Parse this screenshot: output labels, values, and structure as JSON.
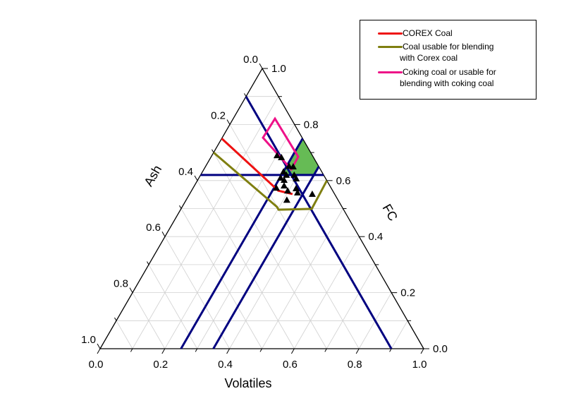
{
  "chart_data": {
    "type": "scatter",
    "subtype": "ternary",
    "axes": {
      "bottom": {
        "label": "Volatiles",
        "ticks": [
          "0.0",
          "0.2",
          "0.4",
          "0.6",
          "0.8",
          "1.0"
        ]
      },
      "left": {
        "label": "Ash",
        "ticks": [
          "0.0",
          "0.2",
          "0.4",
          "0.6",
          "0.8",
          "1.0"
        ]
      },
      "right": {
        "label": "FC",
        "ticks": [
          "0.0",
          "0.2",
          "0.4",
          "0.6",
          "0.8",
          "1.0"
        ]
      }
    },
    "range": [
      0,
      1
    ],
    "grid": true,
    "grid_step": 0.1,
    "legend_position": "top-right",
    "legend": [
      {
        "label": "COREX Coal",
        "color": "#ee1111"
      },
      {
        "label": "Coal usable for blending with Corex coal",
        "label_lines": [
          "Coal usable for blending",
          "with Corex coal"
        ],
        "color": "#7f7f10"
      },
      {
        "label": "Coking coal or usable for blending with coking coal",
        "label_lines": [
          "Coking coal or usable for",
          "blending with coking coal"
        ],
        "color": "#ee1188"
      }
    ],
    "regions": [
      {
        "name": "COREX Coal",
        "color": "#ee1111",
        "points_vol_fc": [
          [
            0.0,
            0.75
          ],
          [
            0.268,
            0.564
          ],
          [
            0.318,
            0.552
          ]
        ]
      },
      {
        "name": "Coal usable for blending with Corex coal",
        "color": "#7f7f10",
        "points_vol_fc": [
          [
            0.0,
            0.7
          ],
          [
            0.293,
            0.506
          ],
          [
            0.303,
            0.496
          ],
          [
            0.404,
            0.499
          ],
          [
            0.4,
            0.6
          ]
        ]
      },
      {
        "name": "Coking coal or usable for blending with coking coal",
        "color": "#ee1188",
        "closed": true,
        "points_vol_fc": [
          [
            0.129,
            0.821
          ],
          [
            0.126,
            0.753
          ],
          [
            0.27,
            0.64
          ],
          [
            0.269,
            0.685
          ]
        ]
      }
    ],
    "boundary_lines": {
      "color": "#000080",
      "lines_vol_fc": [
        [
          [
            0.25,
            0.0
          ],
          [
            0.25,
            0.75
          ]
        ],
        [
          [
            0.35,
            0.0
          ],
          [
            0.35,
            0.65
          ]
        ],
        [
          [
            0.0,
            0.9
          ],
          [
            0.9,
            0.0
          ]
        ],
        [
          [
            0.0,
            0.62
          ],
          [
            0.38,
            0.62
          ]
        ]
      ]
    },
    "shaded_region": {
      "color": "#66bb55",
      "points_vol_fc": [
        [
          0.25,
          0.75
        ],
        [
          0.35,
          0.65
        ],
        [
          0.35,
          0.62
        ],
        [
          0.25,
          0.62
        ]
      ]
    },
    "samples": {
      "marker": "triangle",
      "color": "#000000",
      "points_vol_fc": [
        [
          0.201,
          0.69
        ],
        [
          0.218,
          0.683
        ],
        [
          0.257,
          0.652
        ],
        [
          0.271,
          0.65
        ],
        [
          0.25,
          0.632
        ],
        [
          0.289,
          0.62
        ],
        [
          0.265,
          0.62
        ],
        [
          0.302,
          0.607
        ],
        [
          0.252,
          0.61
        ],
        [
          0.267,
          0.602
        ],
        [
          0.277,
          0.582
        ],
        [
          0.297,
          0.564
        ],
        [
          0.319,
          0.572
        ],
        [
          0.331,
          0.557
        ],
        [
          0.379,
          0.552
        ],
        [
          0.311,
          0.531
        ],
        [
          0.257,
          0.574
        ]
      ]
    }
  }
}
